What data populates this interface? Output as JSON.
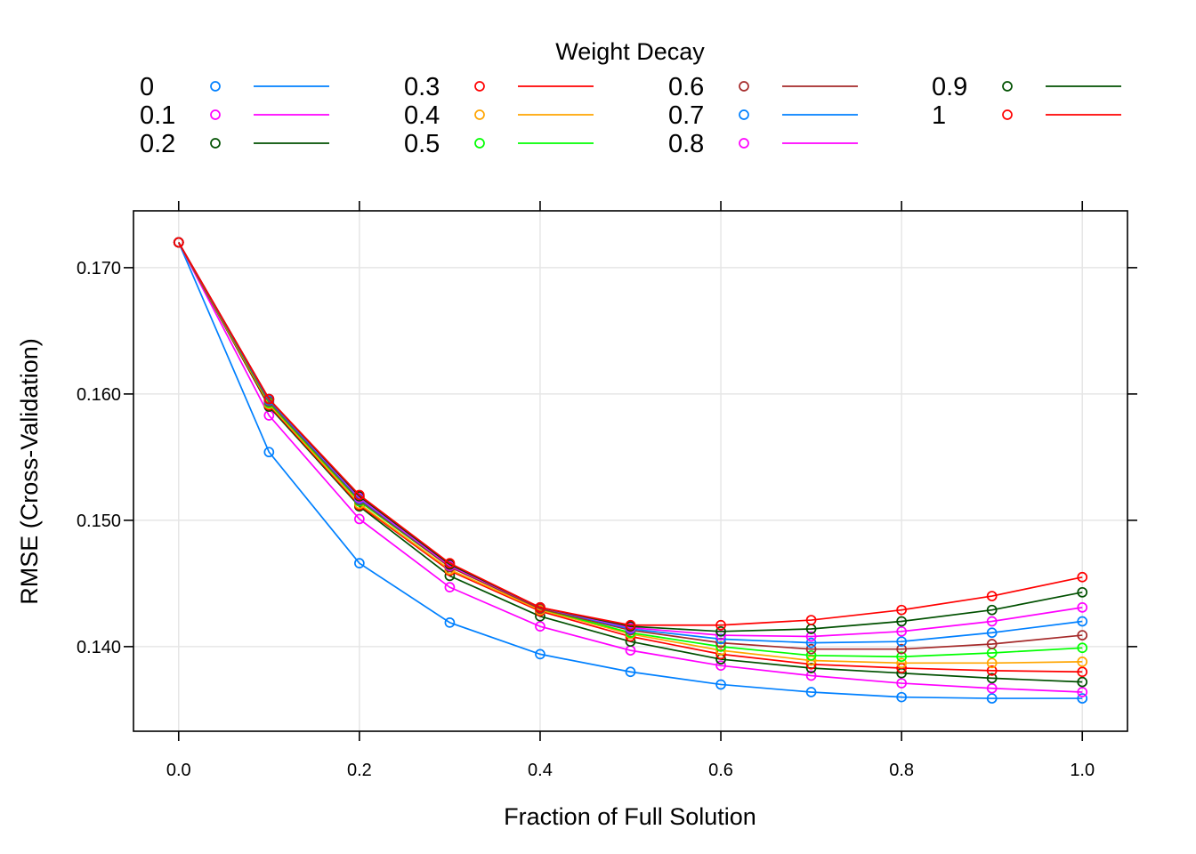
{
  "chart_data": {
    "type": "line",
    "title": "",
    "legend_title": "Weight Decay",
    "legend_position": "top",
    "xlabel": "Fraction of Full Solution",
    "ylabel": "RMSE (Cross-Validation)",
    "xlim": [
      -0.05,
      1.05
    ],
    "ylim": [
      0.1333,
      0.1745
    ],
    "x_ticks": [
      0.0,
      0.2,
      0.4,
      0.6,
      0.8,
      1.0
    ],
    "x_tick_labels": [
      "0.0",
      "0.2",
      "0.4",
      "0.6",
      "0.8",
      "1.0"
    ],
    "y_ticks": [
      0.14,
      0.15,
      0.16,
      0.17
    ],
    "y_tick_labels": [
      "0.140",
      "0.150",
      "0.160",
      "0.170"
    ],
    "grid": true,
    "x": [
      0.0,
      0.1,
      0.2,
      0.3,
      0.4,
      0.5,
      0.6,
      0.7,
      0.8,
      0.9,
      1.0
    ],
    "series": [
      {
        "name": "0",
        "color": "#0080FF",
        "values": [
          0.172,
          0.1554,
          0.1466,
          0.1419,
          0.1394,
          0.138,
          0.137,
          0.1364,
          0.136,
          0.1359,
          0.1359
        ]
      },
      {
        "name": "0.1",
        "color": "#FF00FF",
        "values": [
          0.172,
          0.1583,
          0.1501,
          0.1447,
          0.1416,
          0.1397,
          0.1385,
          0.1377,
          0.1371,
          0.1367,
          0.1364
        ]
      },
      {
        "name": "0.2",
        "color": "#005000",
        "values": [
          0.172,
          0.159,
          0.1511,
          0.1456,
          0.1424,
          0.1404,
          0.139,
          0.1383,
          0.1379,
          0.1375,
          0.1372
        ]
      },
      {
        "name": "0.3",
        "color": "#FF0000",
        "values": [
          0.172,
          0.1591,
          0.1512,
          0.146,
          0.1428,
          0.1408,
          0.1394,
          0.1386,
          0.1383,
          0.1381,
          0.138
        ]
      },
      {
        "name": "0.4",
        "color": "#FFA500",
        "values": [
          0.172,
          0.1592,
          0.1513,
          0.1461,
          0.1429,
          0.141,
          0.1397,
          0.1389,
          0.1387,
          0.1387,
          0.1388
        ]
      },
      {
        "name": "0.5",
        "color": "#00FF00",
        "values": [
          0.172,
          0.1593,
          0.1515,
          0.1463,
          0.143,
          0.1411,
          0.14,
          0.1393,
          0.1392,
          0.1395,
          0.1399
        ]
      },
      {
        "name": "0.6",
        "color": "#A52A2A",
        "values": [
          0.172,
          0.1594,
          0.1516,
          0.1463,
          0.143,
          0.1413,
          0.1403,
          0.1398,
          0.1398,
          0.1402,
          0.1409
        ]
      },
      {
        "name": "0.7",
        "color": "#0080FF",
        "values": [
          0.172,
          0.1595,
          0.1517,
          0.1464,
          0.1431,
          0.1414,
          0.1406,
          0.1403,
          0.1404,
          0.1411,
          0.142
        ]
      },
      {
        "name": "0.8",
        "color": "#FF00FF",
        "values": [
          0.172,
          0.1596,
          0.1518,
          0.1464,
          0.1431,
          0.1415,
          0.1409,
          0.1408,
          0.1412,
          0.142,
          0.1431
        ]
      },
      {
        "name": "0.9",
        "color": "#005000",
        "values": [
          0.172,
          0.1596,
          0.1519,
          0.1465,
          0.1431,
          0.1416,
          0.1412,
          0.1414,
          0.142,
          0.1429,
          0.1443
        ]
      },
      {
        "name": "1",
        "color": "#FF0000",
        "values": [
          0.172,
          0.1596,
          0.152,
          0.1466,
          0.1431,
          0.1417,
          0.1417,
          0.1421,
          0.1429,
          0.144,
          0.1455
        ]
      }
    ]
  }
}
